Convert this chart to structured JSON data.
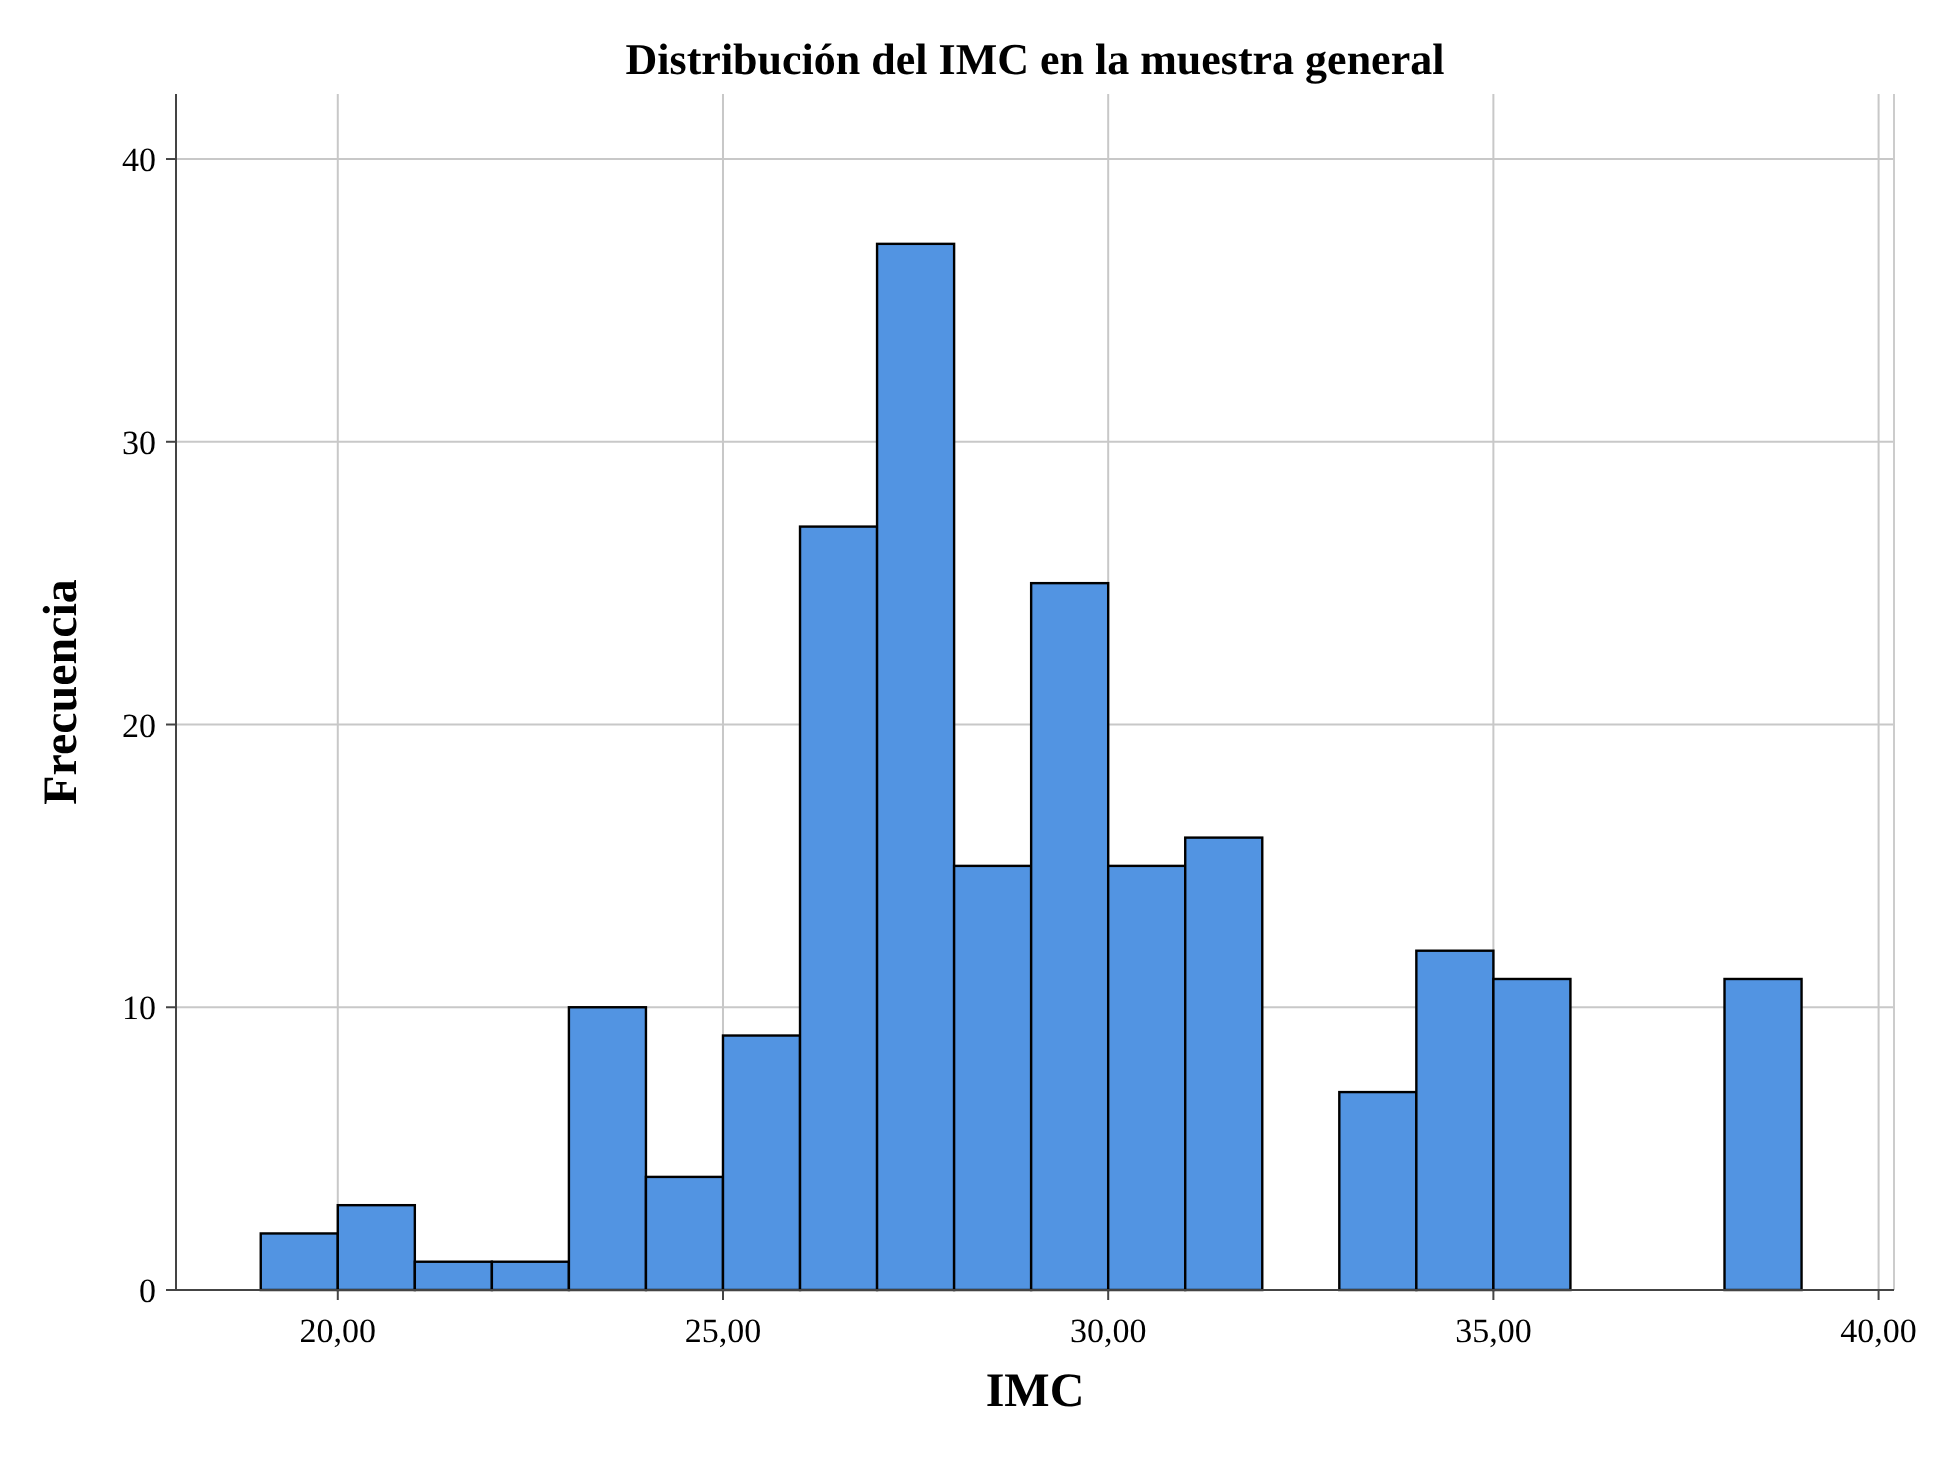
{
  "chart_data": {
    "type": "histogram",
    "title": "Distribución del IMC en la muestra general",
    "xlabel": "IMC",
    "ylabel": "Frecuencia",
    "bins": [
      19,
      20,
      21,
      22,
      23,
      24,
      25,
      26,
      27,
      28,
      29,
      30,
      31,
      32,
      33,
      34,
      35,
      36,
      37,
      38,
      39
    ],
    "values": [
      2,
      3,
      1,
      1,
      10,
      4,
      9,
      27,
      37,
      15,
      25,
      15,
      16,
      0,
      7,
      12,
      11,
      0,
      0,
      11
    ],
    "color": "#5294e2",
    "xlim": [
      17.9,
      40.2
    ],
    "xticks": [
      {
        "value": 20,
        "label": "20,00"
      },
      {
        "value": 25,
        "label": "25,00"
      },
      {
        "value": 30,
        "label": "30,00"
      },
      {
        "value": 35,
        "label": "35,00"
      },
      {
        "value": 40,
        "label": "40,00"
      }
    ],
    "ylim": [
      0,
      42.3
    ],
    "yticks": [
      0,
      10,
      20,
      30,
      40
    ],
    "grid": true
  }
}
